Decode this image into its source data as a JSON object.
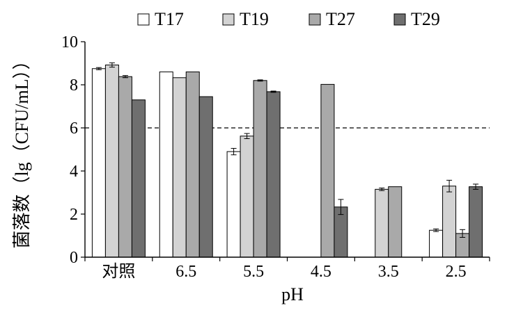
{
  "chart_data": {
    "type": "bar",
    "xlabel": "pH",
    "ylabel": "菌落数（lg（CFU/mL））",
    "categories": [
      "对照",
      "6.5",
      "5.5",
      "4.5",
      "3.5",
      "2.5"
    ],
    "ylim": [
      0,
      10
    ],
    "yticks": [
      0,
      2,
      4,
      6,
      8,
      10
    ],
    "reference_line": 6,
    "legend_position": "top",
    "series": [
      {
        "name": "T17",
        "color": "#ffffff",
        "values": [
          8.75,
          8.6,
          4.9,
          null,
          null,
          1.25
        ],
        "errors": [
          0.05,
          0.0,
          0.15,
          null,
          null,
          0.06
        ]
      },
      {
        "name": "T19",
        "color": "#d3d3d3",
        "values": [
          8.92,
          8.33,
          5.62,
          null,
          3.15,
          3.3
        ],
        "errors": [
          0.1,
          0.0,
          0.12,
          null,
          0.06,
          0.27
        ]
      },
      {
        "name": "T27",
        "color": "#a9a9a9",
        "values": [
          8.38,
          8.6,
          8.2,
          8.02,
          3.27,
          1.1
        ],
        "errors": [
          0.05,
          0.0,
          0.03,
          0.0,
          0.0,
          0.18
        ]
      },
      {
        "name": "T29",
        "color": "#6f6f6f",
        "values": [
          7.3,
          7.45,
          7.68,
          2.33,
          null,
          3.27
        ],
        "errors": [
          0.0,
          0.0,
          0.03,
          0.35,
          null,
          0.12
        ]
      }
    ]
  }
}
